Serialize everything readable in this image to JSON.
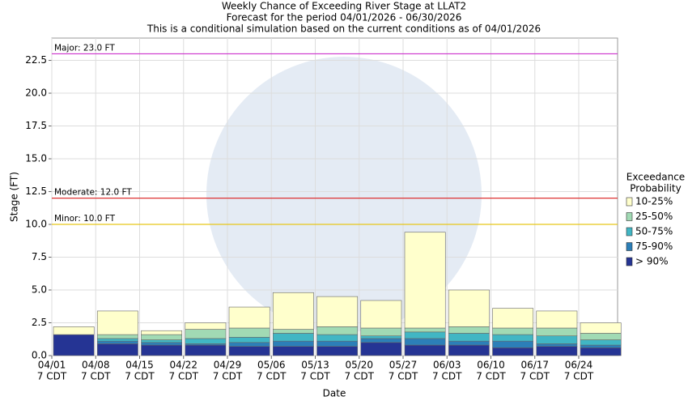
{
  "chart_data": {
    "type": "stacked-bar",
    "title": [
      "Weekly Chance of Exceeding River Stage at LLAT2",
      "Forecast for the period 04/01/2026 - 06/30/2026",
      "This is a conditional simulation based on the current conditions as of 04/01/2026"
    ],
    "x_label": "Date",
    "y_label": "Stage (FT)",
    "categories": [
      "04/01",
      "04/08",
      "04/15",
      "04/22",
      "04/29",
      "05/06",
      "05/13",
      "05/20",
      "05/27",
      "06/03",
      "06/10",
      "06/17",
      "06/24"
    ],
    "category_sublabels": [
      "7 CDT",
      "7 CDT",
      "7 CDT",
      "7 CDT",
      "7 CDT",
      "7 CDT",
      "7 CDT",
      "7 CDT",
      "7 CDT",
      "7 CDT",
      "7 CDT",
      "7 CDT",
      "7 CDT"
    ],
    "ylim": [
      0,
      24.2
    ],
    "yticks": [
      {
        "value": 0,
        "label": "0.0"
      },
      {
        "value": 2.5,
        "label": "2.5"
      },
      {
        "value": 5,
        "label": "5.0"
      },
      {
        "value": 7.5,
        "label": "7.5"
      },
      {
        "value": 10,
        "label": "10.0"
      },
      {
        "value": 12.5,
        "label": "12.5"
      },
      {
        "value": 15,
        "label": "15.0"
      },
      {
        "value": 17.5,
        "label": "17.5"
      },
      {
        "value": 20,
        "label": "20.0"
      },
      {
        "value": 22.5,
        "label": "22.5"
      }
    ],
    "grid": true,
    "legend_title": [
      "Exceedance",
      "Probability"
    ],
    "series": [
      {
        "name": "10-25%",
        "color": "#ffffcc",
        "values": [
          0.6,
          1.8,
          0.3,
          0.5,
          1.6,
          2.8,
          2.3,
          2.1,
          7.3,
          2.8,
          1.5,
          1.3,
          0.8
        ]
      },
      {
        "name": "25-50%",
        "color": "#a1dab4",
        "values": [
          0,
          0.3,
          0.4,
          0.7,
          0.7,
          0.3,
          0.6,
          0.6,
          0.3,
          0.5,
          0.5,
          0.6,
          0.5
        ]
      },
      {
        "name": "50-75%",
        "color": "#41b6c4",
        "values": [
          0,
          0.2,
          0.2,
          0.4,
          0.4,
          0.6,
          0.5,
          0.2,
          0.5,
          0.6,
          0.5,
          0.6,
          0.4
        ]
      },
      {
        "name": "75-90%",
        "color": "#2c7fb8",
        "values": [
          0,
          0.2,
          0.2,
          0.1,
          0.3,
          0.4,
          0.4,
          0.3,
          0.5,
          0.3,
          0.5,
          0.2,
          0.2
        ]
      },
      {
        "name": "> 90%",
        "color": "#253494",
        "values": [
          1.6,
          0.9,
          0.8,
          0.8,
          0.7,
          0.7,
          0.7,
          1.0,
          0.8,
          0.8,
          0.6,
          0.7,
          0.6
        ]
      }
    ],
    "thresholds": [
      {
        "label": "Major: 23.0 FT",
        "value": 23,
        "color": "#cc33cc"
      },
      {
        "label": "Moderate: 12.0 FT",
        "value": 12,
        "color": "#dd3333"
      },
      {
        "label": "Minor: 10.0 FT",
        "value": 10,
        "color": "#e6c619"
      }
    ]
  }
}
